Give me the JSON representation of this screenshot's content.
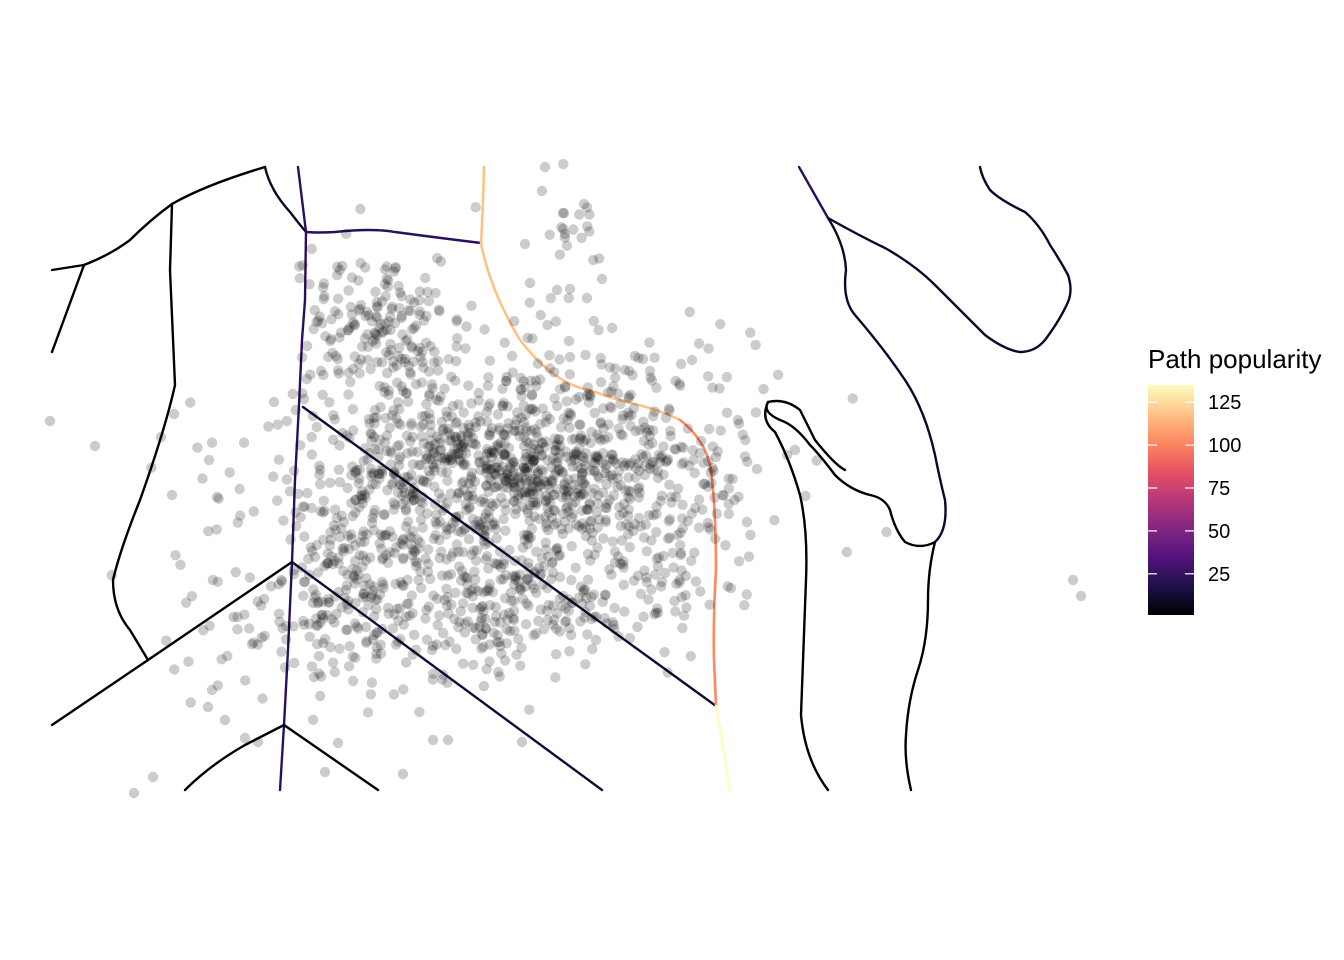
{
  "legend": {
    "title": "Path popularity",
    "ticks": [
      {
        "label": "125",
        "value": 125
      },
      {
        "label": "100",
        "value": 100
      },
      {
        "label": "75",
        "value": 75
      },
      {
        "label": "50",
        "value": 50
      },
      {
        "label": "25",
        "value": 25
      }
    ],
    "range": [
      1,
      135
    ],
    "colormap": [
      "#000004",
      "#1d1147",
      "#51127c",
      "#822681",
      "#b73779",
      "#e75263",
      "#fc8961",
      "#fec287",
      "#fcfdbf"
    ]
  },
  "points_style": {
    "color": "#000000",
    "opacity": 0.2
  }
}
